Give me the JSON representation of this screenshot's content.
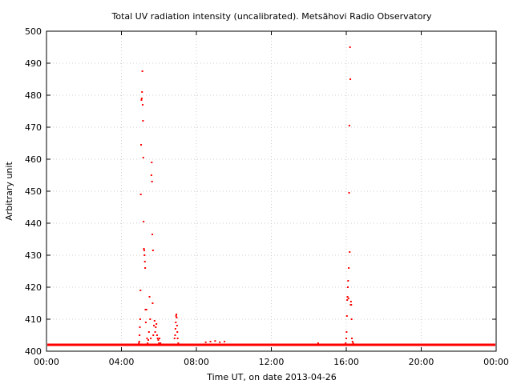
{
  "chart_data": {
    "type": "scatter",
    "title": "Total UV radiation intensity (uncalibrated). Metsähovi Radio Observatory",
    "xlabel": "Time UT, on date 2013-04-26",
    "ylabel": "Arbitrary unit",
    "xlim": [
      "00:00",
      "24:00"
    ],
    "ylim": [
      400,
      500
    ],
    "xticks": [
      "00:00",
      "04:00",
      "08:00",
      "12:00",
      "16:00",
      "20:00",
      "00:00"
    ],
    "yticks": [
      400,
      410,
      420,
      430,
      440,
      450,
      460,
      470,
      480,
      490,
      500
    ],
    "grid": true,
    "point_color": "#ff0000",
    "series": [
      {
        "baseline_value": 402,
        "points": [
          [
            "04:56",
            402.5
          ],
          [
            "04:57",
            403
          ],
          [
            "04:58",
            405
          ],
          [
            "04:59",
            407.5
          ],
          [
            "05:00",
            410
          ],
          [
            "05:01",
            419
          ],
          [
            "05:02",
            449
          ],
          [
            "05:03",
            464.5
          ],
          [
            "05:04",
            478.5
          ],
          [
            "05:05",
            479
          ],
          [
            "05:06",
            481
          ],
          [
            "05:07",
            487.5
          ],
          [
            "05:08",
            477
          ],
          [
            "05:09",
            472
          ],
          [
            "05:10",
            460.5
          ],
          [
            "05:11",
            440.5
          ],
          [
            "05:12",
            432
          ],
          [
            "05:13",
            431.5
          ],
          [
            "05:14",
            430
          ],
          [
            "05:15",
            428
          ],
          [
            "05:16",
            426
          ],
          [
            "05:17",
            413
          ],
          [
            "05:18",
            409
          ],
          [
            "05:20",
            413
          ],
          [
            "05:22",
            404
          ],
          [
            "05:24",
            402.5
          ],
          [
            "05:26",
            403.5
          ],
          [
            "05:28",
            406
          ],
          [
            "05:30",
            417
          ],
          [
            "05:32",
            410
          ],
          [
            "05:34",
            404
          ],
          [
            "05:36",
            455
          ],
          [
            "05:37",
            459
          ],
          [
            "05:38",
            453
          ],
          [
            "05:39",
            436.5
          ],
          [
            "05:40",
            415
          ],
          [
            "05:41",
            431.5
          ],
          [
            "05:42",
            405
          ],
          [
            "05:44",
            408
          ],
          [
            "05:46",
            409.5
          ],
          [
            "05:48",
            406
          ],
          [
            "05:50",
            407.5
          ],
          [
            "05:52",
            408.5
          ],
          [
            "05:54",
            405
          ],
          [
            "05:56",
            404
          ],
          [
            "05:58",
            403.5
          ],
          [
            "06:00",
            402.5
          ],
          [
            "06:02",
            404
          ],
          [
            "06:05",
            402.5
          ],
          [
            "06:50",
            404
          ],
          [
            "06:52",
            405
          ],
          [
            "06:53",
            407
          ],
          [
            "06:54",
            409
          ],
          [
            "06:55",
            411
          ],
          [
            "06:56",
            411.5
          ],
          [
            "06:57",
            410.5
          ],
          [
            "06:58",
            408
          ],
          [
            "06:59",
            406
          ],
          [
            "07:00",
            404
          ],
          [
            "07:02",
            402.5
          ],
          [
            "08:30",
            402.8
          ],
          [
            "08:45",
            403
          ],
          [
            "09:00",
            403.2
          ],
          [
            "09:15",
            402.8
          ],
          [
            "09:30",
            403
          ],
          [
            "14:30",
            402.5
          ],
          [
            "15:58",
            402.5
          ],
          [
            "16:00",
            404
          ],
          [
            "16:01",
            406
          ],
          [
            "16:02",
            411
          ],
          [
            "16:03",
            416
          ],
          [
            "16:04",
            417
          ],
          [
            "16:05",
            420
          ],
          [
            "16:06",
            422
          ],
          [
            "16:07",
            416.5
          ],
          [
            "16:08",
            426
          ],
          [
            "16:09",
            449.5
          ],
          [
            "16:10",
            470.5
          ],
          [
            "16:11",
            431
          ],
          [
            "16:12",
            495
          ],
          [
            "16:13",
            485
          ],
          [
            "16:14",
            414.5
          ],
          [
            "16:15",
            415.5
          ],
          [
            "16:16",
            414.5
          ],
          [
            "16:17",
            410
          ],
          [
            "16:18",
            404
          ],
          [
            "16:20",
            403
          ],
          [
            "16:22",
            402.5
          ]
        ]
      }
    ]
  }
}
